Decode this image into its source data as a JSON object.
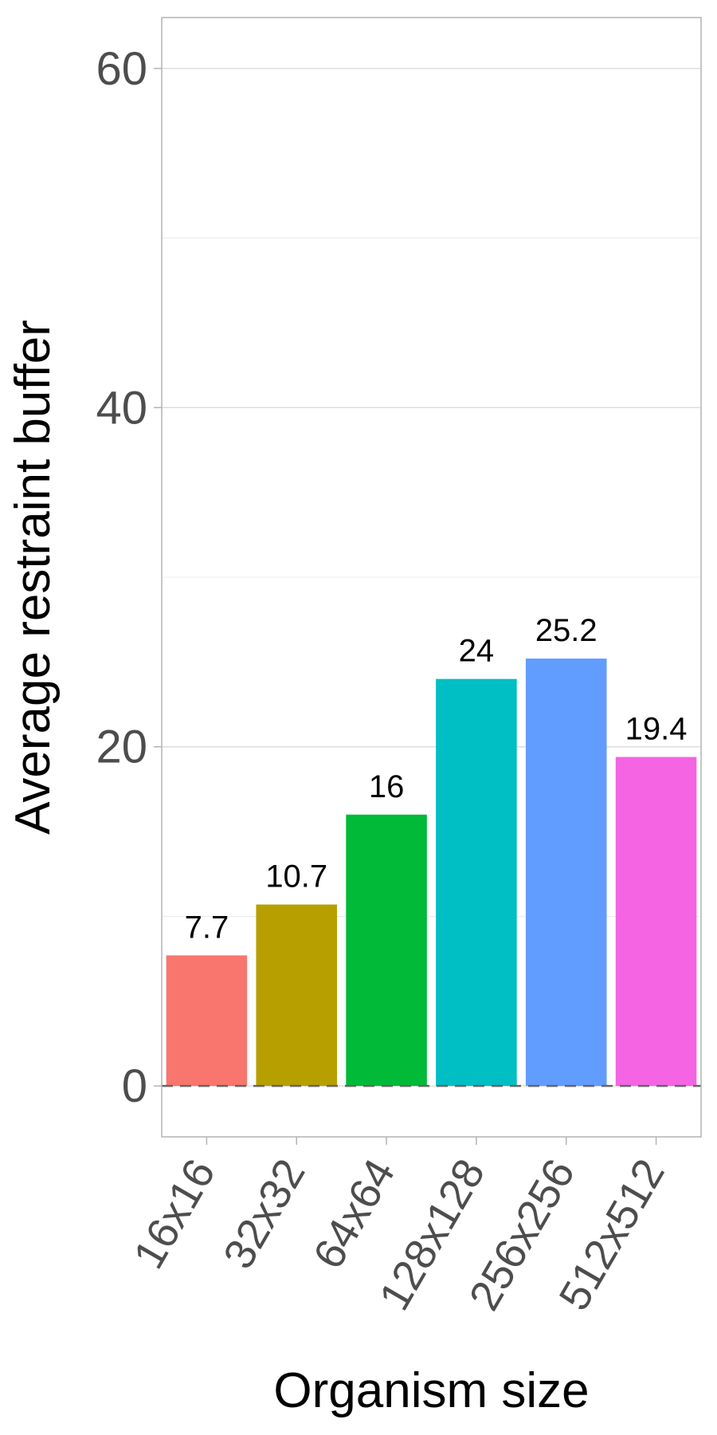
{
  "chart_data": {
    "type": "bar",
    "categories": [
      "16x16",
      "32x32",
      "64x64",
      "128x128",
      "256x256",
      "512x512"
    ],
    "values": [
      7.7,
      10.7,
      16,
      24,
      25.2,
      19.4
    ],
    "value_labels": [
      "7.7",
      "10.7",
      "16",
      "24",
      "25.2",
      "19.4"
    ],
    "colors": [
      "#F8766D",
      "#B79F00",
      "#00BA38",
      "#00BFC4",
      "#619CFF",
      "#F564E3"
    ],
    "title": "",
    "xlabel": "Organism size",
    "ylabel": "Average restraint buffer",
    "ylim": [
      -3,
      63
    ],
    "yticks": [
      0,
      20,
      40,
      60
    ],
    "ytick_labels": [
      "0",
      "20",
      "40",
      "60"
    ],
    "minor_yticks": [
      10,
      30,
      50
    ],
    "reference_line": 0,
    "grid": true,
    "legend": "none"
  }
}
